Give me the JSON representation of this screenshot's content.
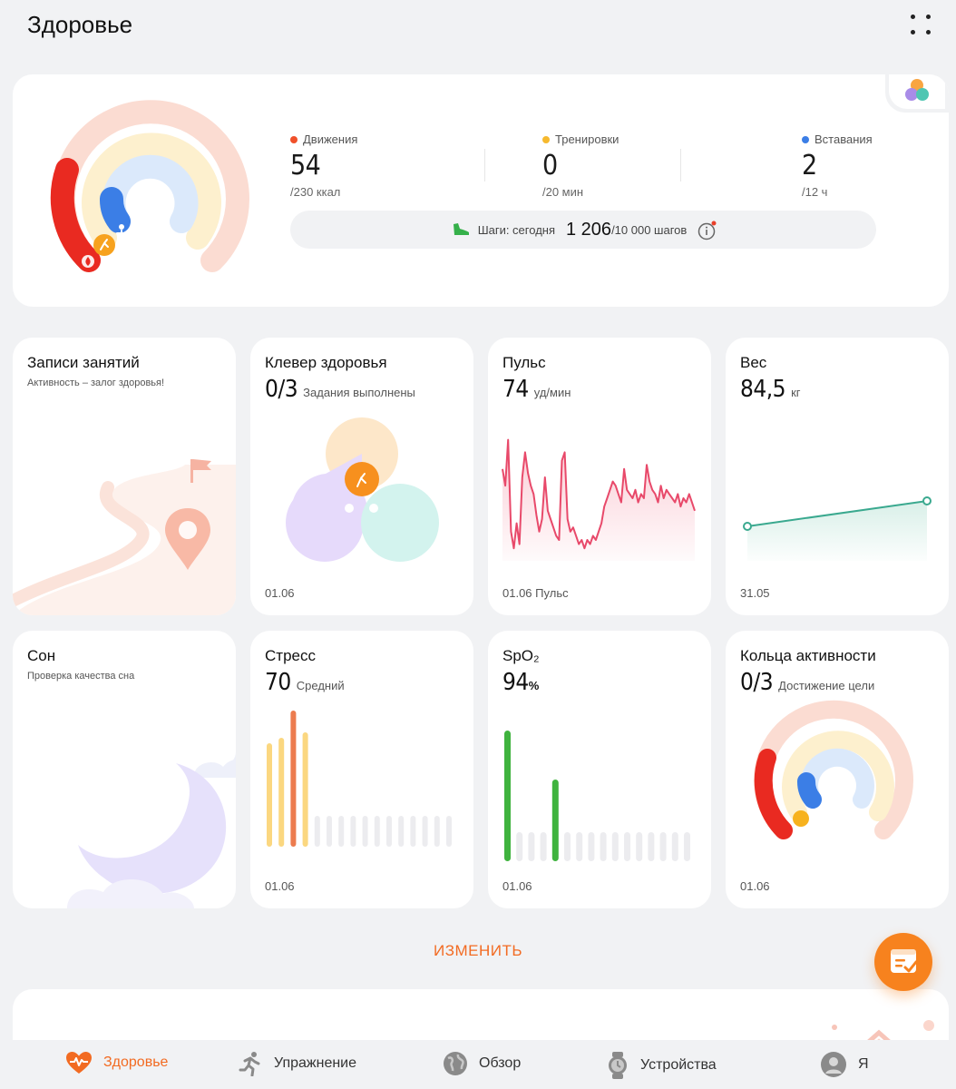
{
  "header": {
    "title": "Здоровье"
  },
  "summary": {
    "stats": [
      {
        "label": "Движения",
        "value": "54",
        "goal": "/230 ккал",
        "color": "#f0502a"
      },
      {
        "label": "Тренировки",
        "value": "0",
        "goal": "/20 мин",
        "color": "#f6b92e"
      },
      {
        "label": "Вставания",
        "value": "2",
        "goal": "/12 ч",
        "color": "#3b7ee6"
      }
    ],
    "steps": {
      "label": "Шаги: сегодня",
      "value": "1 206",
      "goal": "/10 000 шагов"
    }
  },
  "tiles": {
    "records": {
      "title": "Записи занятий",
      "subtitle": "Активность – залог здоровья!"
    },
    "clover": {
      "title": "Клевер здоровья",
      "value": "0/3",
      "unit": "Задания выполнены",
      "date": "01.06"
    },
    "pulse": {
      "title": "Пульс",
      "value": "74",
      "unit": "уд/мин",
      "date": "01.06",
      "date_suffix": "Пульс"
    },
    "weight": {
      "title": "Вес",
      "value": "84,5",
      "unit": "кг",
      "date": "31.05"
    },
    "sleep": {
      "title": "Сон",
      "subtitle": "Проверка качества сна"
    },
    "stress": {
      "title": "Стресс",
      "value": "70",
      "unit": "Средний",
      "date": "01.06"
    },
    "spo2": {
      "title": "SpO₂",
      "value": "94",
      "unit": "%",
      "date": "01.06"
    },
    "rings": {
      "title": "Кольца активности",
      "value": "0/3",
      "unit": "Достижение цели",
      "date": "01.06"
    }
  },
  "chart_data": [
    {
      "type": "line",
      "series": [
        {
          "values": [
            92,
            88,
            99,
            77,
            73,
            79,
            74,
            90,
            96,
            91,
            88,
            86,
            81,
            77,
            80,
            90,
            82,
            80,
            78,
            76,
            75,
            94,
            96,
            80,
            77,
            78,
            76,
            74,
            75,
            73,
            75,
            74,
            76,
            75,
            77,
            79,
            83,
            85,
            87,
            89,
            88,
            86,
            84,
            92,
            87,
            86,
            85,
            87,
            84,
            86,
            85,
            93,
            89,
            87,
            86,
            84,
            88,
            85,
            87,
            86,
            85,
            84,
            86,
            83,
            85,
            84,
            86,
            84,
            82
          ]
        }
      ]
    },
    {
      "type": "line",
      "x": [
        "",
        ""
      ],
      "series": [
        {
          "values": [
            84.3,
            84.5
          ]
        }
      ]
    },
    {
      "type": "bar",
      "series": [
        {
          "values": [
            76,
            80,
            100,
            84,
            0,
            0,
            0,
            0,
            0,
            0,
            0,
            0,
            0,
            0,
            0,
            0
          ]
        }
      ]
    },
    {
      "type": "bar",
      "series": [
        {
          "values": [
            98,
            0,
            0,
            0,
            95,
            0,
            0,
            0,
            0,
            0,
            0,
            0,
            0,
            0,
            0,
            0
          ]
        }
      ]
    }
  ],
  "stress_colors": {
    "high": "#ec7c4f",
    "mid": "#fbd780",
    "empty": "#ececef"
  },
  "spo2_colors": {
    "filled": "#3fb33e",
    "empty": "#ececef"
  },
  "edit": {
    "label": "ИЗМЕНИТЬ"
  },
  "tabs": [
    {
      "label": "Здоровье",
      "icon": "heart-pulse-icon",
      "active": true
    },
    {
      "label": "Упражнение",
      "icon": "running-man-icon"
    },
    {
      "label": "Обзор",
      "icon": "globe-icon"
    },
    {
      "label": "Устройства",
      "icon": "watch-icon"
    },
    {
      "label": "Я",
      "icon": "profile-icon"
    }
  ],
  "accent": "#f26b22"
}
